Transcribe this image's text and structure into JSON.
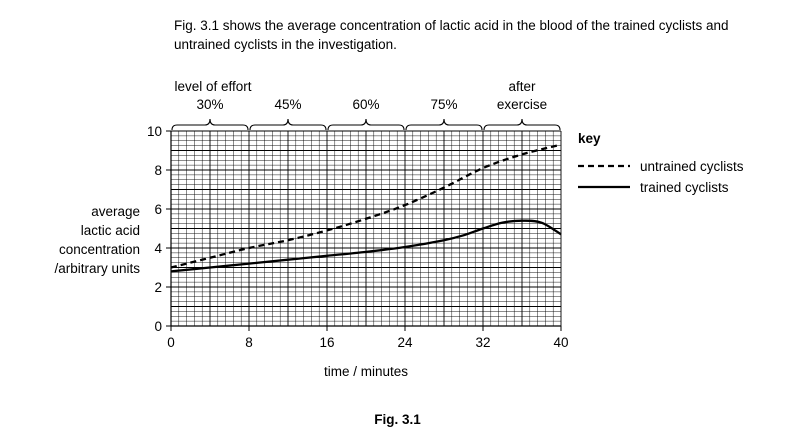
{
  "intro_text": "Fig. 3.1 shows the average concentration of lactic acid in the blood of the trained cyclists and untrained cyclists in the investigation.",
  "figure_caption": "Fig. 3.1",
  "chart_data": {
    "type": "line",
    "ylabel_lines": [
      "average",
      "lactic acid",
      "concentration",
      "/arbitrary units"
    ],
    "xlabel": "time / minutes",
    "xlim": [
      0,
      40
    ],
    "ylim": [
      0,
      10
    ],
    "x_ticks": [
      "0",
      "8",
      "16",
      "24",
      "32",
      "40"
    ],
    "y_ticks": [
      "0",
      "2",
      "4",
      "6",
      "8",
      "10"
    ],
    "grid": true,
    "effort_title": "level of effort",
    "effort_levels": [
      {
        "label": "30%",
        "from": 0,
        "to": 8
      },
      {
        "label": "45%",
        "from": 8,
        "to": 16
      },
      {
        "label": "60%",
        "from": 16,
        "to": 24
      },
      {
        "label": "75%",
        "from": 24,
        "to": 32
      },
      {
        "label": "after exercise",
        "label_lines": [
          "after",
          "exercise"
        ],
        "from": 32,
        "to": 40
      }
    ],
    "legend_title": "key",
    "legend_position": "right",
    "series": [
      {
        "name": "untrained cyclists",
        "style": "dashed",
        "x": [
          0,
          4,
          8,
          12,
          16,
          20,
          24,
          28,
          32,
          36,
          40
        ],
        "y": [
          3.0,
          3.5,
          4.0,
          4.4,
          4.9,
          5.5,
          6.2,
          7.1,
          8.1,
          8.8,
          9.3
        ]
      },
      {
        "name": "trained cyclists",
        "style": "solid",
        "x": [
          0,
          4,
          8,
          12,
          16,
          20,
          24,
          28,
          30,
          32,
          34,
          36,
          38,
          40
        ],
        "y": [
          2.8,
          3.0,
          3.2,
          3.4,
          3.6,
          3.8,
          4.05,
          4.4,
          4.65,
          5.0,
          5.3,
          5.4,
          5.3,
          4.7
        ]
      }
    ]
  }
}
